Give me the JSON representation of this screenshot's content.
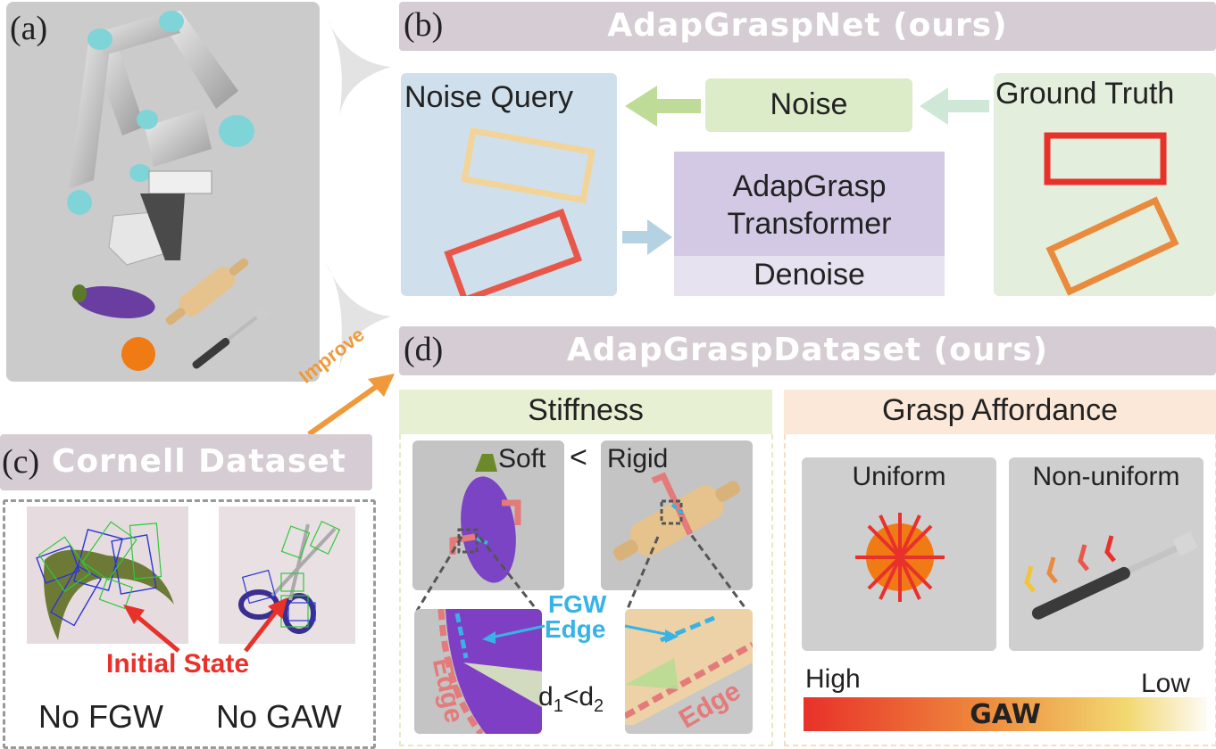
{
  "panels": {
    "a": {
      "tag": "(a)"
    },
    "b": {
      "tag": "(b)",
      "title": "AdapGraspNet (ours)",
      "noise_query": "Noise Query",
      "noise": "Noise",
      "ground_truth": "Ground Truth",
      "transformer_line1": "AdapGrasp",
      "transformer_line2": "Transformer",
      "denoise": "Denoise"
    },
    "c": {
      "tag": "(c)",
      "title": "Cornell Dataset",
      "initial_state": "Initial State",
      "caption_left": "No FGW",
      "caption_right": "No GAW"
    },
    "d": {
      "tag": "(d)",
      "title": "AdapGraspDataset (ours)",
      "improve": "Improve",
      "stiffness": "Stiffness",
      "soft": "Soft",
      "less_than": "<",
      "rigid": "Rigid",
      "fgw": "FGW",
      "edge_blue": "Edge",
      "edge_left": "Edge",
      "edge_right": "Edge",
      "d1": "d",
      "d1_sub": "1",
      "d_lt": "<",
      "d2": "d",
      "d2_sub": "2",
      "grasp_affordance": "Grasp Affordance",
      "uniform": "Uniform",
      "non_uniform": "Non-uniform",
      "high": "High",
      "low": "Low",
      "gaw": "GAW"
    }
  },
  "colors": {
    "header": "#d5cdd3",
    "noise_query_bg": "#cfe0ec",
    "noise_bg": "#dcebc8",
    "ground_truth_bg": "#e3eedc",
    "transformer_bg": "#d4c9e4",
    "denoise_bg": "#e6e2f0",
    "stiffness_bg": "#e7f0d2",
    "affordance_bg": "#fbe8d8",
    "red": "#e8312a",
    "orange": "#ea8a3c",
    "yellow_box": "#f2d49a",
    "fgw_blue": "#38b3e6",
    "edge_pink": "#e47a7a",
    "improve_orange": "#ee9a3c"
  }
}
